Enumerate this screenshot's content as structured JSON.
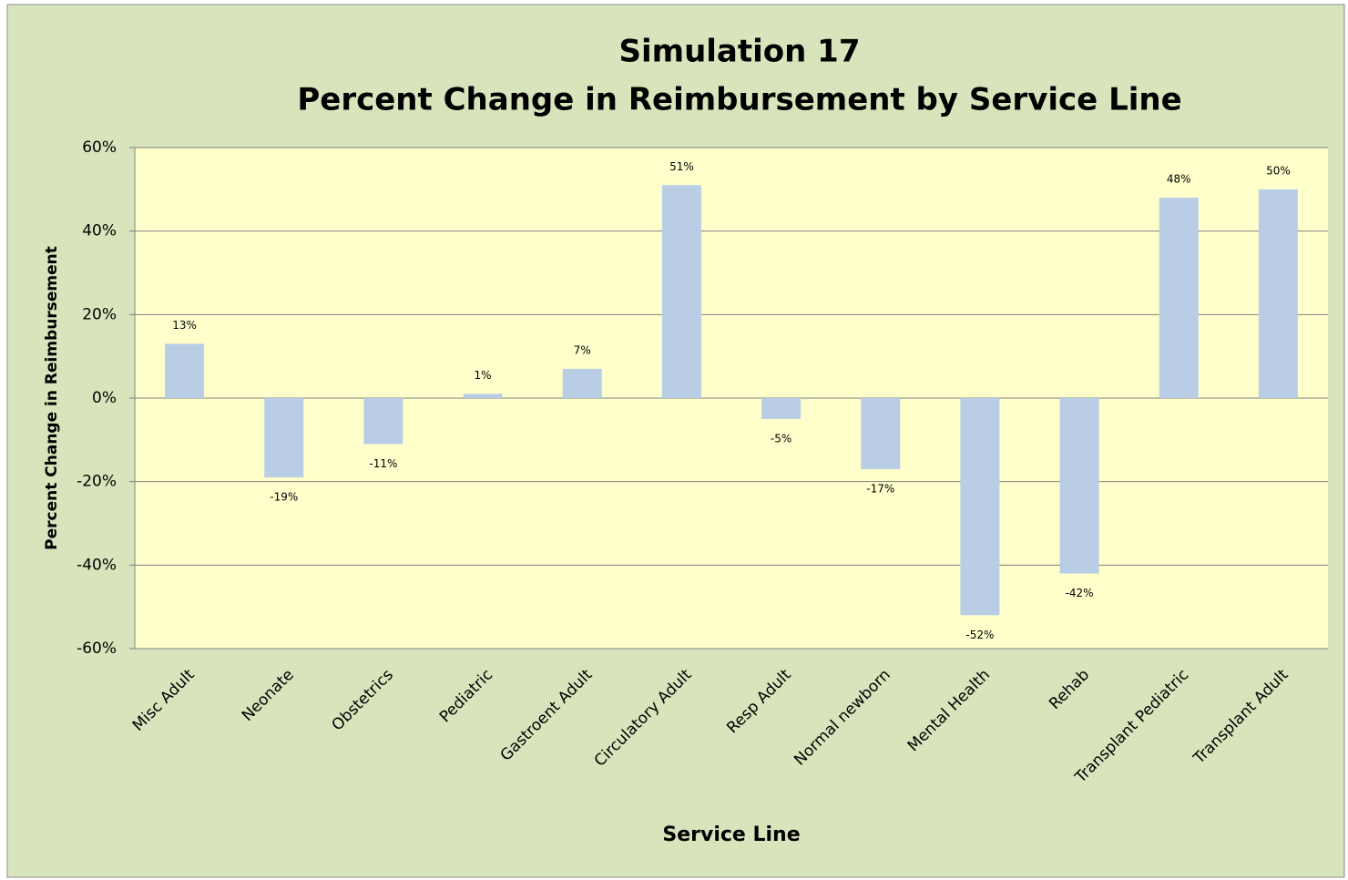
{
  "chart_data": {
    "type": "bar",
    "title": "Simulation 17",
    "subtitle": "Percent Change in Reimbursement by Service Line",
    "x_label": "Service Line",
    "y_label": "Percent Change in Reimbursement",
    "categories": [
      "Misc Adult",
      "Neonate",
      "Obstetrics",
      "Pediatric",
      "Gastroent Adult",
      "Circulatory Adult",
      "Resp Adult",
      "Normal newborn",
      "Mental Health",
      "Rehab",
      "Transplant Pediatric",
      "Transplant Adult"
    ],
    "values": [
      13,
      -19,
      -11,
      1,
      7,
      51,
      -5,
      -17,
      -52,
      -42,
      48,
      50
    ],
    "value_labels": [
      "13%",
      "-19%",
      "-11%",
      "1%",
      "7%",
      "51%",
      "-5%",
      "-17%",
      "-52%",
      "-42%",
      "48%",
      "50%"
    ],
    "color": "#b9cde5",
    "ylim": [
      -60,
      60
    ],
    "yticks": [
      {
        "value": -60,
        "label": "-60%"
      },
      {
        "value": -40,
        "label": "-40%"
      },
      {
        "value": -20,
        "label": "-20%"
      },
      {
        "value": 0,
        "label": "0%"
      },
      {
        "value": 20,
        "label": "20%"
      },
      {
        "value": 40,
        "label": "40%"
      },
      {
        "value": 60,
        "label": "60%"
      }
    ],
    "grid": true
  }
}
